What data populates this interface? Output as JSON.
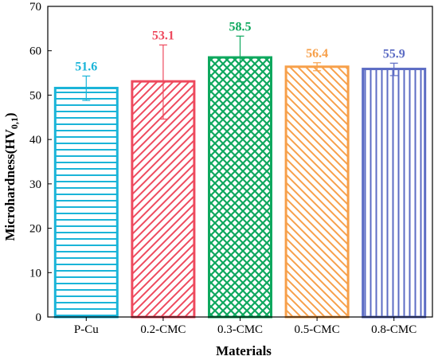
{
  "chart_data": {
    "type": "bar",
    "title": "",
    "xlabel": "Materials",
    "ylabel_main": "Microhardness(HV",
    "ylabel_sub": "0,1",
    "ylabel_close": ")",
    "ylim": [
      0,
      70
    ],
    "yticks": [
      "0",
      "10",
      "20",
      "30",
      "40",
      "50",
      "60",
      "70"
    ],
    "categories": [
      "P-Cu",
      "0.2-CMC",
      "0.3-CMC",
      "0.5-CMC",
      "0.8-CMC"
    ],
    "values": [
      51.6,
      53.1,
      58.5,
      56.4,
      55.9
    ],
    "value_labels": [
      "51.6",
      "53.1",
      "58.5",
      "56.4",
      "55.9"
    ],
    "error_low": [
      2.8,
      8.5,
      5.5,
      0.9,
      1.5
    ],
    "error_high": [
      2.7,
      8.2,
      4.8,
      0.9,
      1.3
    ],
    "colors": [
      "#1ab4d8",
      "#ee4a5e",
      "#0ea85e",
      "#f7a04a",
      "#5c6cc4"
    ],
    "patterns": [
      "horizontal",
      "diagonal-up",
      "crosshatch",
      "diagonal-down",
      "vertical"
    ],
    "grid": false,
    "legend": "none"
  }
}
